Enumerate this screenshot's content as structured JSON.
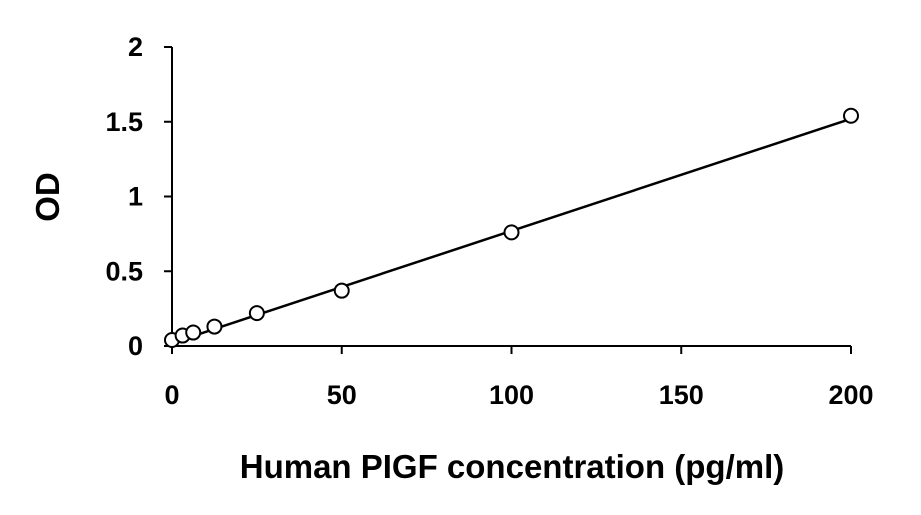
{
  "chart_data": {
    "type": "scatter",
    "xlabel": "Human PIGF concentration (pg/ml)",
    "ylabel": "OD",
    "xlim": [
      0,
      200
    ],
    "ylim": [
      0,
      2
    ],
    "xticks": [
      "0",
      "50",
      "100",
      "150",
      "200"
    ],
    "yticks": [
      "0",
      "0.5",
      "1",
      "1.5",
      "2"
    ],
    "grid": false,
    "series": [
      {
        "points": [
          {
            "x": 0,
            "y": 0.04
          },
          {
            "x": 3.125,
            "y": 0.07
          },
          {
            "x": 6.25,
            "y": 0.09
          },
          {
            "x": 12.5,
            "y": 0.13
          },
          {
            "x": 25,
            "y": 0.22
          },
          {
            "x": 50,
            "y": 0.37
          },
          {
            "x": 100,
            "y": 0.76
          },
          {
            "x": 200,
            "y": 1.54
          }
        ]
      }
    ],
    "trendline": {
      "type": "linear",
      "from": {
        "x": 0,
        "y": 0.02
      },
      "to": {
        "x": 200,
        "y": 1.52
      }
    }
  }
}
